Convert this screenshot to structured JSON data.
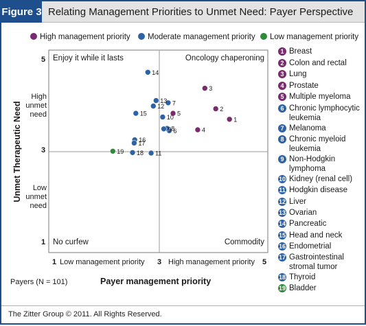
{
  "header": {
    "badge": "Figure 3",
    "title": "Relating Management Priorities to Unmet Need: Payer Perspective"
  },
  "legend": [
    {
      "label": "High management priority",
      "color": "#7a2a6e"
    },
    {
      "label": "Moderate management priority",
      "color": "#2e62a6"
    },
    {
      "label": "Low management priority",
      "color": "#2f8a3a"
    }
  ],
  "quadrants": {
    "top_left": "Enjoy it while it lasts",
    "top_right": "Oncology chaperoning",
    "bottom_left": "No curfew",
    "bottom_right": "Commodity"
  },
  "y_axis": {
    "title": "Unmet Therapeutic Need",
    "high_label": "High\nunmet\nneed",
    "low_label": "Low\nunmet\nneed",
    "ticks": [
      "5",
      "3",
      "1"
    ]
  },
  "x_axis": {
    "title": "Payer management priority",
    "tick_1": "1",
    "low_label": "Low management priority",
    "tick_3": "3",
    "high_label": "High management priority",
    "tick_5": "5"
  },
  "payers_note": "Payers (N = 101)",
  "footer": "The Zitter Group © 2011. All Rights Reserved.",
  "categories": [
    {
      "num": "1",
      "name": "Breast",
      "priority": "high"
    },
    {
      "num": "2",
      "name": "Colon and rectal",
      "priority": "high"
    },
    {
      "num": "3",
      "name": "Lung",
      "priority": "high"
    },
    {
      "num": "4",
      "name": "Prostate",
      "priority": "high"
    },
    {
      "num": "5",
      "name": "Multiple myeloma",
      "priority": "high"
    },
    {
      "num": "6",
      "name": "Chronic lymphocytic leukemia",
      "priority": "moderate"
    },
    {
      "num": "7",
      "name": "Melanoma",
      "priority": "moderate"
    },
    {
      "num": "8",
      "name": "Chronic myeloid leukemia",
      "priority": "moderate"
    },
    {
      "num": "9",
      "name": "Non-Hodgkin lymphoma",
      "priority": "moderate"
    },
    {
      "num": "10",
      "name": "Kidney (renal cell)",
      "priority": "moderate"
    },
    {
      "num": "11",
      "name": "Hodgkin disease",
      "priority": "moderate"
    },
    {
      "num": "12",
      "name": "Liver",
      "priority": "moderate"
    },
    {
      "num": "13",
      "name": "Ovarian",
      "priority": "moderate"
    },
    {
      "num": "14",
      "name": "Pancreatic",
      "priority": "moderate"
    },
    {
      "num": "15",
      "name": "Head and neck",
      "priority": "moderate"
    },
    {
      "num": "16",
      "name": "Endometrial",
      "priority": "moderate"
    },
    {
      "num": "17",
      "name": "Gastrointestinal stromal tumor",
      "priority": "moderate"
    },
    {
      "num": "18",
      "name": "Thyroid",
      "priority": "moderate"
    },
    {
      "num": "19",
      "name": "Bladder",
      "priority": "low"
    }
  ],
  "chart_data": {
    "type": "scatter",
    "title": "Relating Management Priorities to Unmet Need: Payer Perspective",
    "xlabel": "Payer management priority",
    "ylabel": "Unmet Therapeutic Need",
    "xlim": [
      1,
      5
    ],
    "ylim": [
      1,
      5
    ],
    "grid": false,
    "reference_lines": {
      "x": 3,
      "y": 3
    },
    "legend_position": "top",
    "series": [
      {
        "name": "High management priority",
        "color": "#7a2a6e",
        "points": [
          {
            "label": "1",
            "x": 4.3,
            "y": 3.71
          },
          {
            "label": "2",
            "x": 4.05,
            "y": 3.94
          },
          {
            "label": "3",
            "x": 3.85,
            "y": 4.39
          },
          {
            "label": "4",
            "x": 3.72,
            "y": 3.48
          },
          {
            "label": "5",
            "x": 3.27,
            "y": 3.84
          }
        ]
      },
      {
        "name": "Moderate management priority",
        "color": "#2e62a6",
        "points": [
          {
            "label": "6",
            "x": 3.2,
            "y": 3.46
          },
          {
            "label": "7",
            "x": 3.18,
            "y": 4.07
          },
          {
            "label": "8",
            "x": 3.16,
            "y": 3.51
          },
          {
            "label": "9",
            "x": 3.1,
            "y": 3.5
          },
          {
            "label": "10",
            "x": 3.08,
            "y": 3.76
          },
          {
            "label": "11",
            "x": 2.87,
            "y": 2.97
          },
          {
            "label": "12",
            "x": 2.91,
            "y": 4.0
          },
          {
            "label": "13",
            "x": 2.96,
            "y": 4.12
          },
          {
            "label": "14",
            "x": 2.81,
            "y": 4.74
          },
          {
            "label": "15",
            "x": 2.59,
            "y": 3.84
          },
          {
            "label": "16",
            "x": 2.57,
            "y": 3.26
          },
          {
            "label": "17",
            "x": 2.56,
            "y": 3.19
          },
          {
            "label": "18",
            "x": 2.53,
            "y": 2.98
          }
        ]
      },
      {
        "name": "Low management priority",
        "color": "#2f8a3a",
        "points": [
          {
            "label": "19",
            "x": 2.17,
            "y": 3.01
          }
        ]
      }
    ]
  }
}
